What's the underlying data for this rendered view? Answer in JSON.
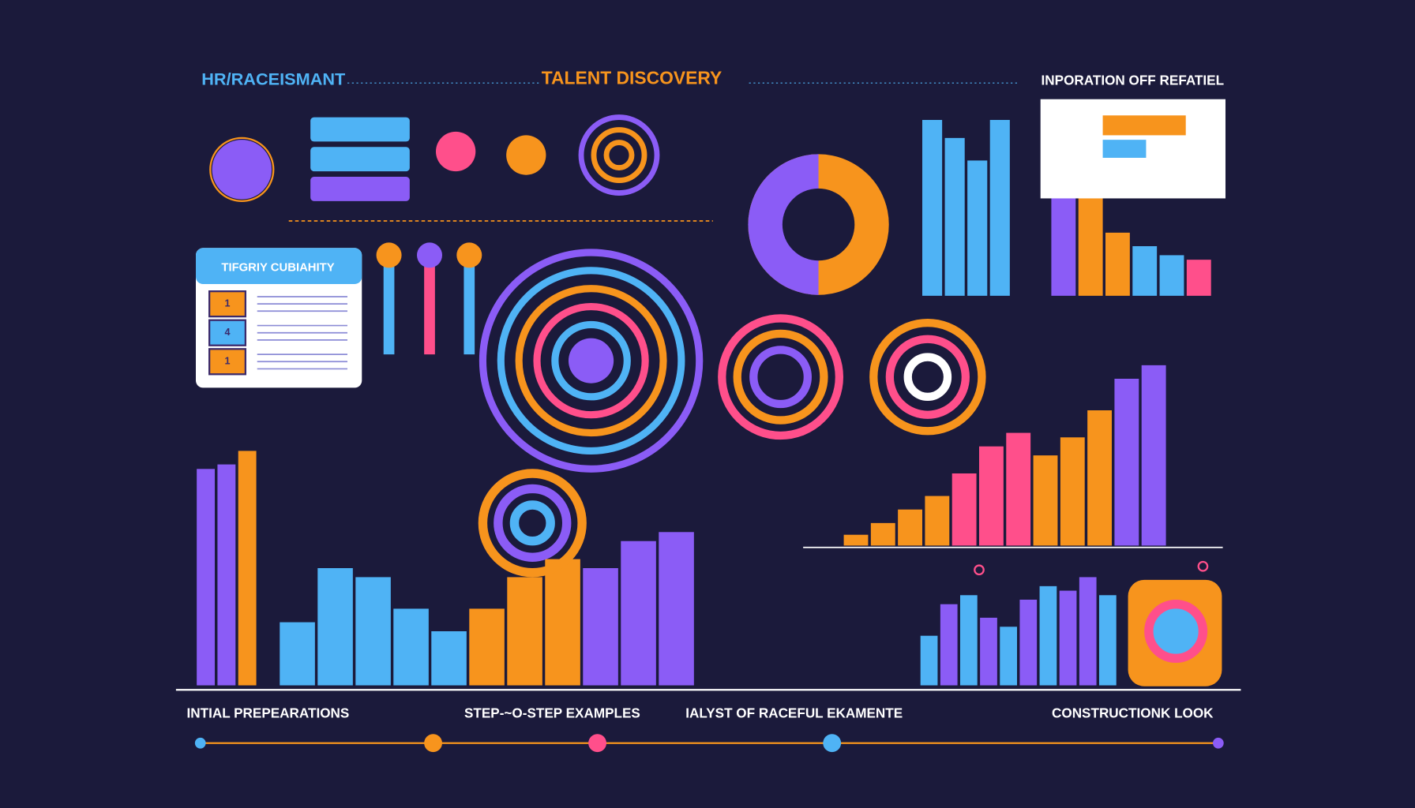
{
  "header": {
    "left": "HR/RACEISMANT",
    "center": "TALENT DISCOVERY",
    "right": "INPORATION OFF REFATIEL"
  },
  "panel": {
    "title": "TIFGRIY CUBIAHITY",
    "items": [
      "1",
      "4",
      "1"
    ]
  },
  "steps": [
    "INTIAL PREPEARATIONS",
    "STEP-~O-STEP EXAMPLES",
    "IALYST OF RACEFUL EKAMENTE",
    "CONSTRUCTIONK LOOK"
  ]
}
